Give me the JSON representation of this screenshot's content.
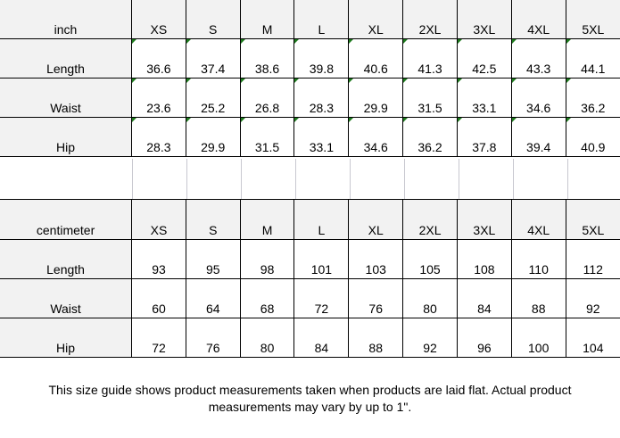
{
  "inch_table": {
    "unit_label": "inch",
    "sizes": [
      "XS",
      "S",
      "M",
      "L",
      "XL",
      "2XL",
      "3XL",
      "4XL",
      "5XL"
    ],
    "rows": [
      {
        "label": "Length",
        "values": [
          "36.6",
          "37.4",
          "38.6",
          "39.8",
          "40.6",
          "41.3",
          "42.5",
          "43.3",
          "44.1"
        ]
      },
      {
        "label": "Waist",
        "values": [
          "23.6",
          "25.2",
          "26.8",
          "28.3",
          "29.9",
          "31.5",
          "33.1",
          "34.6",
          "36.2"
        ]
      },
      {
        "label": "Hip",
        "values": [
          "28.3",
          "29.9",
          "31.5",
          "33.1",
          "34.6",
          "36.2",
          "37.8",
          "39.4",
          "40.9"
        ]
      }
    ]
  },
  "cm_table": {
    "unit_label": "centimeter",
    "sizes": [
      "XS",
      "S",
      "M",
      "L",
      "XL",
      "2XL",
      "3XL",
      "4XL",
      "5XL"
    ],
    "rows": [
      {
        "label": "Length",
        "values": [
          "93",
          "95",
          "98",
          "101",
          "103",
          "105",
          "108",
          "110",
          "112"
        ]
      },
      {
        "label": "Waist",
        "values": [
          "60",
          "64",
          "68",
          "72",
          "76",
          "80",
          "84",
          "88",
          "92"
        ]
      },
      {
        "label": "Hip",
        "values": [
          "72",
          "76",
          "80",
          "84",
          "88",
          "92",
          "96",
          "100",
          "104"
        ]
      }
    ]
  },
  "caption": "This size guide shows product measurements taken when products are laid flat. Actual product measurements may vary by up to 1\".",
  "colors": {
    "header_bg": "#f2f2f2",
    "cell_marker": "#1e7b1e"
  }
}
